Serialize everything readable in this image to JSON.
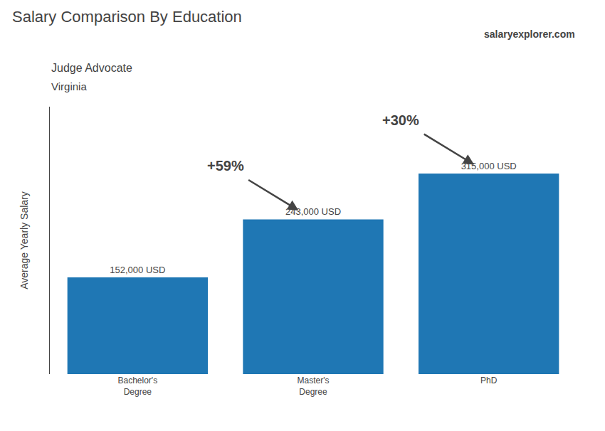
{
  "chart_data": {
    "type": "bar",
    "title": "Salary Comparison By Education",
    "subtitle": [
      "Judge Advocate",
      "Virginia"
    ],
    "ylabel": "Average Yearly Salary",
    "categories": [
      "Bachelor's\nDegree",
      "Master's\nDegree",
      "PhD"
    ],
    "values": [
      152000,
      243000,
      315000
    ],
    "value_labels": [
      "152,000 USD",
      "243,000 USD",
      "315,000 USD"
    ],
    "data_labels": true,
    "ylim": [
      0,
      420000
    ],
    "tick_labels": "x",
    "grid": false,
    "annotations": [
      {
        "text": "+59%",
        "from": "Bachelor's\nDegree",
        "to": "Master's\nDegree"
      },
      {
        "text": "+30%",
        "from": "Master's\nDegree",
        "to": "PhD"
      },
      {
        "text": "salaryexplorer.com"
      }
    ]
  }
}
